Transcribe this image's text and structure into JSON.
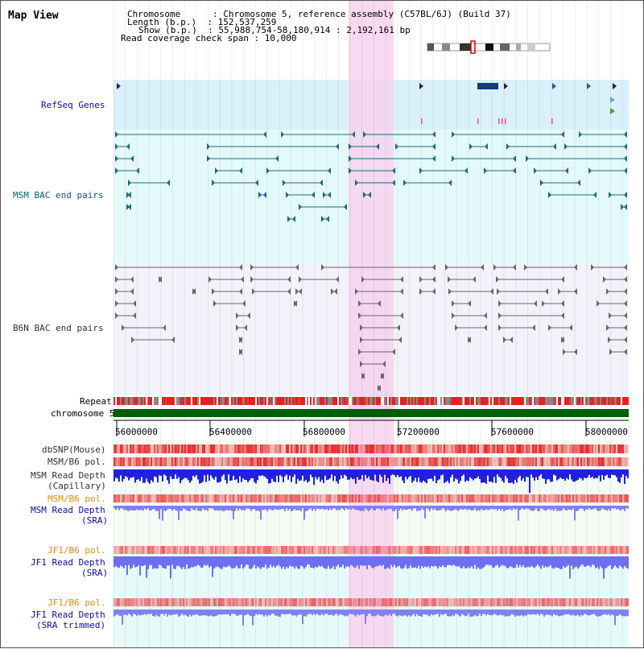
{
  "header": {
    "title": "Map View",
    "info_lines": [
      "Chromosome      : Chromosome 5, reference assembly (C57BL/6J) (Build 37)",
      "Length (b.p.)  : 152,537,259",
      "Show (b.p.)  : 55,988,754-58,180,914 : 2,192,161 bp",
      "Read coverage check span : 10,000"
    ]
  },
  "tracks": {
    "refseq": "RefSeq Genes",
    "msm_bac": "MSM BAC end pairs",
    "b6n_bac": "B6N BAC end pairs",
    "repeat": "Repeat",
    "chromosome": "chromosome 5",
    "dbsnp": "dbSNP(Mouse)",
    "msm_b6_pol_1": "MSM/B6 pol.",
    "msm_read_depth_cap": [
      "MSM Read Depth",
      "(Capillary)"
    ],
    "msm_b6_pol_2": "MSM/B6 pol.",
    "msm_read_depth_sra": [
      "MSM Read Depth",
      "(SRA)"
    ],
    "jf1_b6_pol_1": "JF1/B6 pol.",
    "jf1_read_depth_sra": [
      "JF1 Read Depth",
      "(SRA)"
    ],
    "jf1_b6_pol_2": "JF1/B6 pol.",
    "jf1_read_depth_trim": [
      "JF1 Read Depth",
      "(SRA trimmed)"
    ]
  },
  "axis": {
    "ticks": [
      "56000000",
      "56400000",
      "56800000",
      "57200000",
      "57600000",
      "58000000"
    ],
    "start": 55988754,
    "end": 58180914
  },
  "colors": {
    "label_blue": "#0a0aaa",
    "label_teal": "#00607a",
    "label_dark": "#333333",
    "label_orange": "#e88a00",
    "highlight": "#f7d2ef",
    "refseq_bg": "#daf0fa",
    "msm_bg": "#e4fafa",
    "b6n_bg": "#f2f2fa",
    "chromosome_bar": "#006000",
    "snp_red": "#e83030",
    "depth_blue": "#2020e0",
    "depth_light": "#8080f0"
  }
}
